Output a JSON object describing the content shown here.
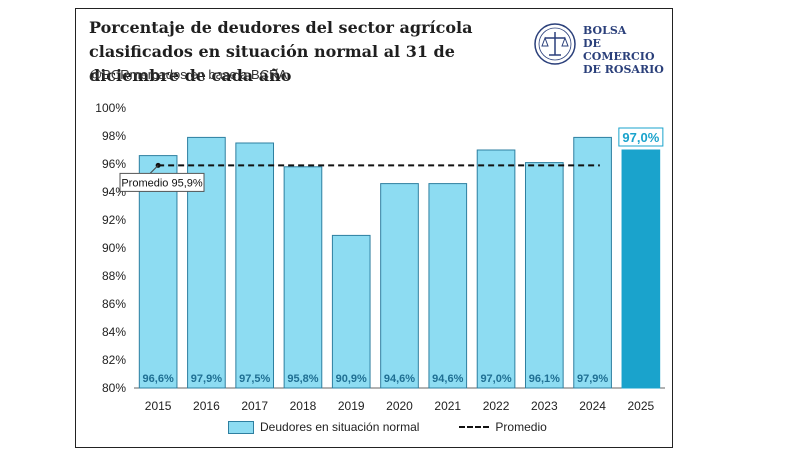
{
  "header": {
    "title": "Porcentaje de deudores del sector agrícola clasificados en situación normal al 31 de diciembre de cada año",
    "subtitle": "@BCRmercados en base a BCRA"
  },
  "logo": {
    "line1": "BOLSA",
    "line2": "DE COMERCIO",
    "line3": "DE ROSARIO",
    "icon": "bcr-seal-icon"
  },
  "colors": {
    "bar": "#8ddcf2",
    "bar_highlight": "#1aa3cc",
    "bar_border": "#2e7fa0",
    "label": "#1f6f93",
    "average": "#111111"
  },
  "legend": {
    "series_label": "Deudores en situación normal",
    "average_label": "Promedio"
  },
  "chart_data": {
    "type": "bar",
    "categories": [
      "2015",
      "2016",
      "2017",
      "2018",
      "2019",
      "2020",
      "2021",
      "2022",
      "2023",
      "2024",
      "2025"
    ],
    "series": [
      {
        "name": "Deudores en situación normal",
        "values": [
          96.6,
          97.9,
          97.5,
          95.8,
          90.9,
          94.6,
          94.6,
          97.0,
          96.1,
          97.9,
          97.0
        ],
        "labels": [
          "96,6%",
          "97,9%",
          "97,5%",
          "95,8%",
          "90,9%",
          "94,6%",
          "94,6%",
          "97,0%",
          "96,1%",
          "97,9%",
          "97,0%"
        ]
      }
    ],
    "highlight_index": 10,
    "average": {
      "value": 95.9,
      "label": "Promedio 95,9%",
      "name": "Promedio"
    },
    "ylim": [
      80,
      100
    ],
    "yticks": [
      80,
      82,
      84,
      86,
      88,
      90,
      92,
      94,
      96,
      98,
      100
    ],
    "ytick_labels": [
      "80%",
      "82%",
      "84%",
      "86%",
      "88%",
      "90%",
      "92%",
      "94%",
      "96%",
      "98%",
      "100%"
    ],
    "grid": false,
    "legend_position": "bottom"
  }
}
